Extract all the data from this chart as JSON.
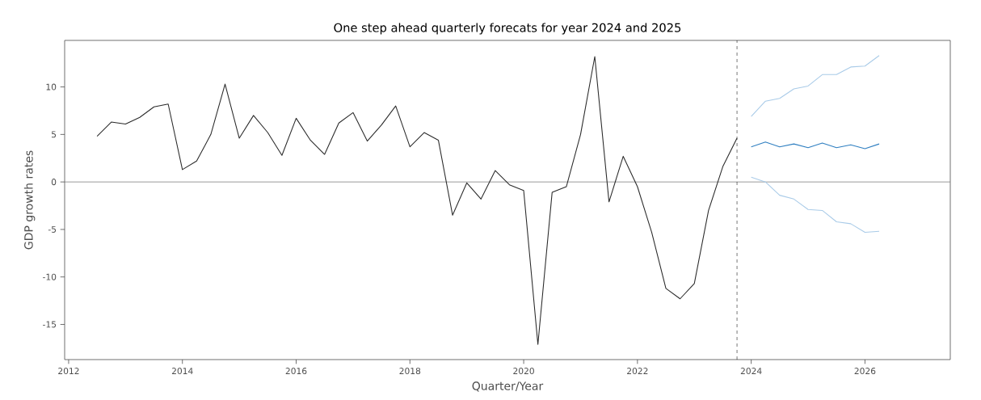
{
  "chart_data": {
    "type": "line",
    "title": "One step ahead quarterly forecats for year 2024 and 2025",
    "xlabel": "Quarter/Year",
    "ylabel": "GDP growth rates",
    "xlim": [
      2011.93,
      2027.5
    ],
    "ylim": [
      -18.7,
      14.9
    ],
    "xticks": [
      2012,
      2014,
      2016,
      2018,
      2020,
      2022,
      2024,
      2026
    ],
    "yticks": [
      -15,
      -10,
      -5,
      0,
      5,
      10
    ],
    "marker": "none",
    "line_style": "solid",
    "series": [
      {
        "color": "#2a2a2a",
        "x": [
          2012.5,
          2012.75,
          2013.0,
          2013.25,
          2013.5,
          2013.75,
          2014.0,
          2014.25,
          2014.5,
          2014.75,
          2015.0,
          2015.25,
          2015.5,
          2015.75,
          2016.0,
          2016.25,
          2016.5,
          2016.75,
          2017.0,
          2017.25,
          2017.5,
          2017.75,
          2018.0,
          2018.25,
          2018.5,
          2018.75,
          2019.0,
          2019.25,
          2019.5,
          2019.75,
          2020.0,
          2020.25,
          2020.5,
          2020.75,
          2021.0,
          2021.25,
          2021.5,
          2021.75,
          2022.0,
          2022.25,
          2022.5,
          2022.75,
          2023.0,
          2023.25,
          2023.5,
          2023.75
        ],
        "values": [
          4.8,
          6.3,
          6.1,
          6.8,
          7.9,
          8.2,
          1.3,
          2.2,
          5.0,
          10.3,
          4.6,
          7.0,
          5.2,
          2.8,
          6.7,
          4.4,
          2.9,
          6.2,
          7.3,
          4.3,
          6.0,
          8.0,
          3.7,
          5.2,
          4.4,
          -3.5,
          -0.1,
          -1.8,
          1.2,
          -0.3,
          -0.9,
          -17.1,
          -1.1,
          -0.5,
          5.0,
          13.2,
          -2.1,
          2.7,
          -0.5,
          -5.3,
          -11.2,
          -12.3,
          -10.7,
          -3.0,
          1.6,
          4.6
        ]
      },
      {
        "color": "#a9cbe8",
        "x": [
          2024.0,
          2024.25,
          2024.5,
          2024.75,
          2025.0,
          2025.25,
          2025.5,
          2025.75,
          2026.0,
          2026.25
        ],
        "values": [
          6.9,
          8.5,
          8.8,
          9.8,
          10.1,
          11.3,
          11.3,
          12.1,
          12.2,
          13.3
        ]
      },
      {
        "color": "#2f7fc1",
        "x": [
          2024.0,
          2024.25,
          2024.5,
          2024.75,
          2025.0,
          2025.25,
          2025.5,
          2025.75,
          2026.0,
          2026.25
        ],
        "values": [
          3.7,
          4.2,
          3.7,
          4.0,
          3.6,
          4.1,
          3.6,
          3.9,
          3.5,
          4.0
        ]
      },
      {
        "color": "#a9cbe8",
        "x": [
          2024.0,
          2024.25,
          2024.5,
          2024.75,
          2025.0,
          2025.25,
          2025.5,
          2025.75,
          2026.0,
          2026.25
        ],
        "values": [
          0.5,
          0.0,
          -1.4,
          -1.8,
          -2.9,
          -3.0,
          -4.2,
          -4.4,
          -5.3,
          -5.2
        ]
      }
    ],
    "ref_lines": [
      {
        "axis": "y",
        "value": 0,
        "color": "#808080",
        "line_style": "solid"
      },
      {
        "axis": "x",
        "value": 2023.75,
        "color": "#000000",
        "line_style": "dashed"
      }
    ]
  }
}
